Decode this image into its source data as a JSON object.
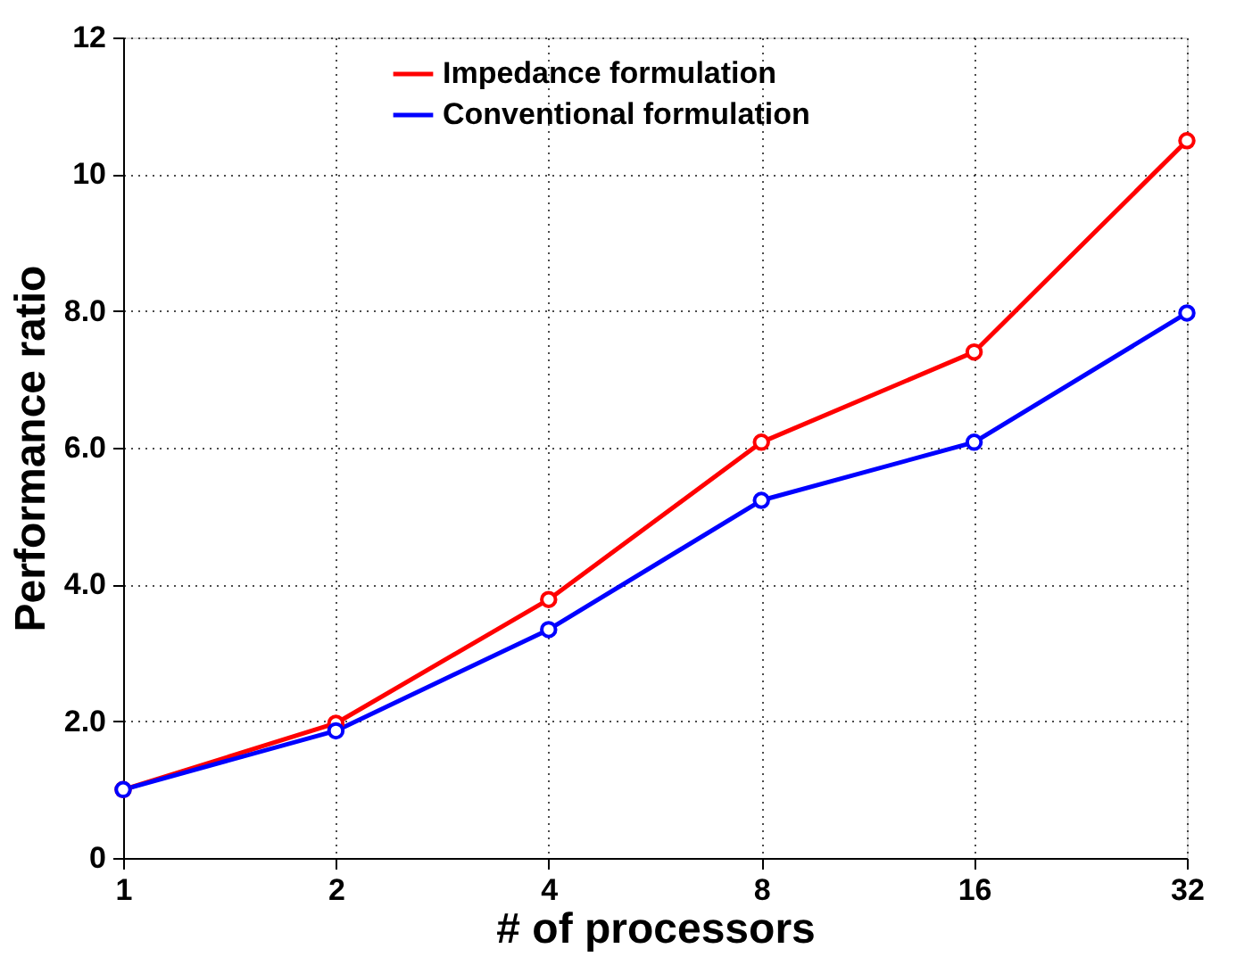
{
  "chart_data": {
    "type": "line",
    "xlabel": "# of processors",
    "ylabel": "Performance ratio",
    "x": [
      1,
      2,
      4,
      8,
      16,
      32
    ],
    "series": [
      {
        "name": "Impedance formulation",
        "color": "#ff0000",
        "values": [
          1.0,
          1.97,
          3.78,
          6.08,
          7.4,
          10.49
        ]
      },
      {
        "name": "Conventional formulation",
        "color": "#0000ff",
        "values": [
          1.0,
          1.86,
          3.34,
          5.23,
          6.08,
          7.97
        ]
      }
    ],
    "log": "x",
    "xlim": [
      1,
      32
    ],
    "xticks": [
      1,
      2,
      4,
      8,
      16,
      32
    ],
    "ylim": [
      0,
      12
    ],
    "yticks": [
      0,
      {
        "value": 2,
        "label": "2.0"
      },
      {
        "value": 4,
        "label": "4.0"
      },
      {
        "value": 6,
        "label": "6.0"
      },
      {
        "value": 8,
        "label": "8.0"
      },
      10,
      12
    ],
    "grid": true,
    "legend": "top",
    "marker": "circle",
    "line_style": "solid"
  }
}
